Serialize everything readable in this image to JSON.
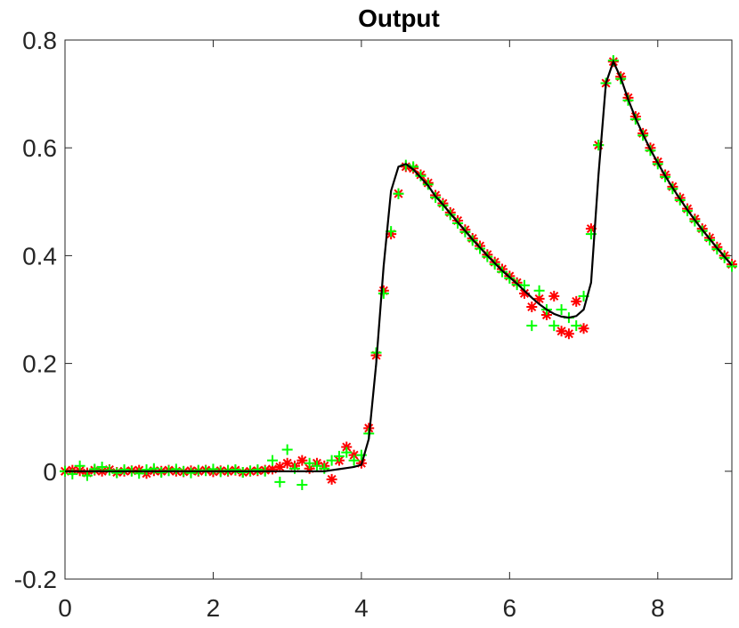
{
  "chart_data": {
    "type": "line",
    "title": "Output",
    "x": [
      0,
      0.1,
      0.2,
      0.3,
      0.4,
      0.5,
      0.6,
      0.7,
      0.8,
      0.9,
      1,
      1.1,
      1.2,
      1.3,
      1.4,
      1.5,
      1.6,
      1.7,
      1.8,
      1.9,
      2,
      2.1,
      2.2,
      2.3,
      2.4,
      2.5,
      2.6,
      2.7,
      2.8,
      2.9,
      3,
      3.1,
      3.2,
      3.3,
      3.4,
      3.5,
      3.6,
      3.7,
      3.8,
      3.9,
      4,
      4.1,
      4.2,
      4.3,
      4.4,
      4.5,
      4.6,
      4.7,
      4.8,
      4.9,
      5,
      5.1,
      5.2,
      5.3,
      5.4,
      5.5,
      5.6,
      5.7,
      5.8,
      5.9,
      6,
      6.1,
      6.2,
      6.3,
      6.4,
      6.5,
      6.6,
      6.7,
      6.8,
      6.9,
      7,
      7.1,
      7.2,
      7.3,
      7.4,
      7.5,
      7.6,
      7.7,
      7.8,
      7.9,
      8,
      8.1,
      8.2,
      8.3,
      8.4,
      8.5,
      8.6,
      8.7,
      8.8,
      8.9,
      9
    ],
    "series": [
      {
        "color": "#000000",
        "marker": "none",
        "values": [
          0,
          0,
          0,
          0,
          0,
          0,
          0,
          0,
          0,
          0,
          0,
          0,
          0,
          0,
          0,
          0,
          0,
          0,
          0,
          0,
          0,
          0,
          0,
          0,
          0,
          0,
          0,
          0,
          0,
          0,
          0,
          0,
          0,
          0,
          0,
          0,
          0.002,
          0.004,
          0.006,
          0.008,
          0.012,
          0.06,
          0.2,
          0.38,
          0.52,
          0.565,
          0.57,
          0.56,
          0.545,
          0.53,
          0.51,
          0.495,
          0.478,
          0.462,
          0.446,
          0.43,
          0.415,
          0.4,
          0.386,
          0.372,
          0.36,
          0.348,
          0.335,
          0.322,
          0.31,
          0.3,
          0.292,
          0.287,
          0.285,
          0.288,
          0.3,
          0.35,
          0.55,
          0.72,
          0.76,
          0.73,
          0.69,
          0.655,
          0.625,
          0.597,
          0.572,
          0.548,
          0.526,
          0.505,
          0.485,
          0.466,
          0.448,
          0.431,
          0.414,
          0.398,
          0.382
        ]
      },
      {
        "color": "#ff0000",
        "marker": "asterisk",
        "values": [
          0,
          0.002,
          0.001,
          -0.003,
          0.002,
          0,
          0.003,
          -0.002,
          0,
          0.001,
          0.002,
          -0.004,
          0.001,
          0,
          0.002,
          0,
          -0.001,
          0.001,
          0,
          0.002,
          -0.001,
          0.001,
          0,
          0.002,
          -0.002,
          0,
          0.001,
          0.002,
          0.004,
          0.008,
          0.015,
          0.01,
          0.02,
          0.005,
          0.015,
          0.01,
          -0.015,
          0.02,
          0.045,
          0.03,
          0.015,
          0.08,
          0.215,
          0.335,
          0.44,
          0.515,
          0.565,
          0.562,
          0.55,
          0.535,
          0.512,
          0.497,
          0.48,
          0.465,
          0.448,
          0.432,
          0.418,
          0.402,
          0.388,
          0.375,
          0.362,
          0.35,
          0.33,
          0.305,
          0.32,
          0.29,
          0.325,
          0.26,
          0.255,
          0.315,
          0.265,
          0.45,
          0.605,
          0.72,
          0.76,
          0.732,
          0.693,
          0.658,
          0.627,
          0.6,
          0.574,
          0.55,
          0.528,
          0.507,
          0.487,
          0.468,
          0.45,
          0.433,
          0.416,
          0.4,
          0.384
        ]
      },
      {
        "color": "#00ff00",
        "marker": "plus",
        "values": [
          0,
          -0.005,
          0.01,
          -0.008,
          0.004,
          0.008,
          0.002,
          -0.003,
          0.003,
          0,
          -0.004,
          0.003,
          0.005,
          -0.002,
          0.001,
          0.004,
          0,
          -0.003,
          0.002,
          0.001,
          0.004,
          -0.001,
          0.002,
          0.003,
          -0.002,
          0.001,
          0.003,
          0,
          0.02,
          -0.02,
          0.04,
          0.005,
          -0.025,
          0.015,
          0.01,
          0.005,
          0.02,
          0.028,
          0.035,
          0.02,
          0.03,
          0.07,
          0.22,
          0.33,
          0.445,
          0.515,
          0.568,
          0.565,
          0.548,
          0.532,
          0.508,
          0.493,
          0.476,
          0.46,
          0.444,
          0.428,
          0.413,
          0.398,
          0.384,
          0.37,
          0.358,
          0.346,
          0.345,
          0.27,
          0.335,
          0.3,
          0.27,
          0.3,
          0.285,
          0.27,
          0.325,
          0.44,
          0.605,
          0.72,
          0.762,
          0.728,
          0.688,
          0.653,
          0.623,
          0.595,
          0.57,
          0.546,
          0.524,
          0.503,
          0.483,
          0.464,
          0.446,
          0.429,
          0.412,
          0.396,
          0.38
        ]
      }
    ],
    "xlim": [
      0,
      9
    ],
    "ylim": [
      -0.2,
      0.8
    ],
    "xticks": [
      0,
      2,
      4,
      6,
      8
    ],
    "yticks": [
      -0.2,
      0,
      0.2,
      0.4,
      0.6,
      0.8
    ]
  }
}
